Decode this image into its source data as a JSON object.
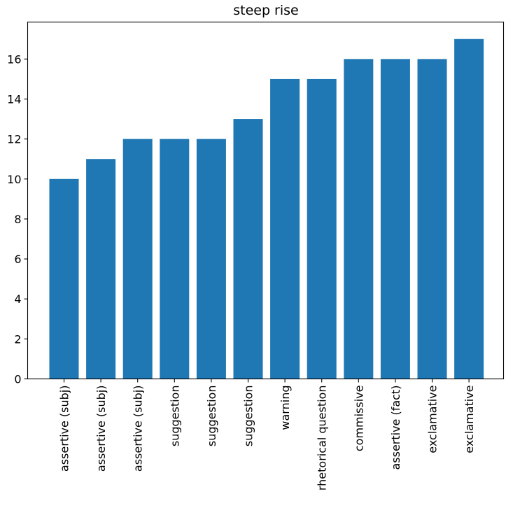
{
  "chart_data": {
    "type": "bar",
    "title": "steep rise",
    "xlabel": "",
    "ylabel": "",
    "categories": [
      "assertive (subj)",
      "assertive (subj)",
      "assertive (subj)",
      "suggestion",
      "suggestion",
      "suggestion",
      "warning",
      "rhetorical question",
      "commissive",
      "assertive (fact)",
      "exclamative",
      "exclamative"
    ],
    "values": [
      10,
      11,
      12,
      12,
      12,
      13,
      15,
      15,
      16,
      16,
      16,
      17
    ],
    "ylim": [
      0,
      17.85
    ],
    "yticks": [
      0,
      2,
      4,
      6,
      8,
      10,
      12,
      14,
      16
    ],
    "bar_color": "#1f77b4",
    "grid": false,
    "legend": false
  }
}
